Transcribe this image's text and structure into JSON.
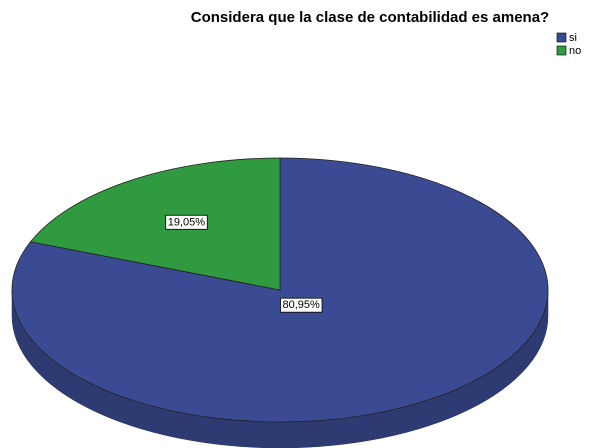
{
  "chart_data": {
    "type": "pie",
    "title": "Considera que la clase de contabilidad es amena?",
    "categories": [
      "si",
      "no"
    ],
    "values": [
      80.95,
      19.05
    ],
    "value_labels": [
      "80,95%",
      "19,05%"
    ],
    "colors": [
      "#3b4b93",
      "#2f9a3f"
    ],
    "legend": "top-right"
  }
}
